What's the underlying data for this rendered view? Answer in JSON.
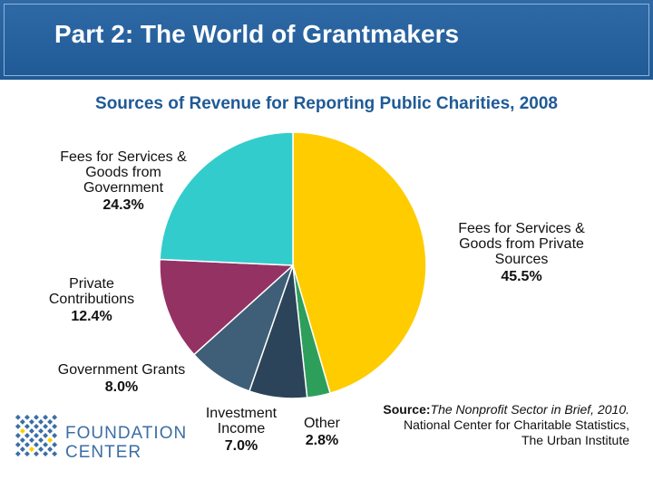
{
  "header": {
    "title": "Part 2: The World of Grantmakers"
  },
  "chart_data": {
    "type": "pie",
    "title": "Sources of Revenue for Reporting Public Charities, 2008",
    "slices": [
      {
        "label_lines": [
          "Fees for Services &",
          "Goods from Private",
          "Sources"
        ],
        "value": 45.5,
        "value_label": "45.5%",
        "color": "#ffcc00"
      },
      {
        "label_lines": [
          "Other"
        ],
        "value": 2.8,
        "value_label": "2.8%",
        "color": "#2e9e5b"
      },
      {
        "label_lines": [
          "Investment",
          "Income"
        ],
        "value": 7.0,
        "value_label": "7.0%",
        "color": "#2b4459"
      },
      {
        "label_lines": [
          "Government Grants"
        ],
        "value": 8.0,
        "value_label": "8.0%",
        "color": "#3f5f78"
      },
      {
        "label_lines": [
          "Private",
          "Contributions"
        ],
        "value": 12.4,
        "value_label": "12.4%",
        "color": "#953264"
      },
      {
        "label_lines": [
          "Fees for Services &",
          "Goods from",
          "Government"
        ],
        "value": 24.3,
        "value_label": "24.3%",
        "color": "#33cccc"
      }
    ]
  },
  "source": {
    "label": "Source:",
    "title": "The Nonprofit Sector in Brief, 2010.",
    "line2": "National Center for Charitable Statistics,",
    "line3": "The Urban Institute"
  },
  "logo": {
    "line1": "FOUNDATION",
    "line2": "CENTER",
    "color": "#3b6ea5"
  }
}
